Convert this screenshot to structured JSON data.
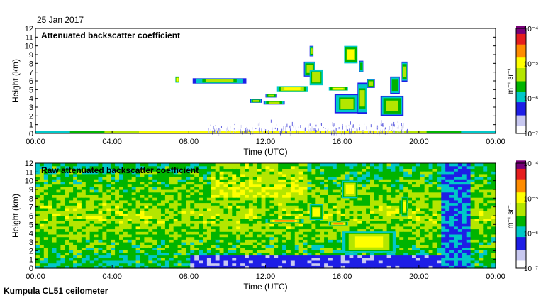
{
  "date_label": "25 Jan 2017",
  "footer": "Kumpula CL51 ceilometer",
  "colors": {
    "background": "#ffffff",
    "axis": "#000000",
    "low_noise": "#3b3bd8",
    "colormap": [
      "#ffffff",
      "#c8c8f0",
      "#1e1ee6",
      "#00c8c8",
      "#00b400",
      "#b4e600",
      "#ffff00",
      "#ff8c00",
      "#e61e1e",
      "#780078"
    ]
  },
  "chart_data": [
    {
      "type": "heatmap",
      "title": "Attenuated backscatter coefficient",
      "xlabel": "Time (UTC)",
      "ylabel": "Height (km)",
      "x_ticks": [
        "00:00",
        "04:00",
        "08:00",
        "12:00",
        "16:00",
        "20:00",
        "00:00"
      ],
      "y_ticks": [
        "0",
        "1",
        "2",
        "3",
        "4",
        "5",
        "6",
        "7",
        "8",
        "9",
        "10",
        "11",
        "12"
      ],
      "xlim": [
        0,
        24
      ],
      "ylim": [
        0,
        12
      ],
      "colorbar": {
        "label": "m⁻¹ sr⁻¹",
        "ticks": [
          "10⁻⁴",
          "10⁻⁵",
          "10⁻⁶",
          "10⁻⁷"
        ],
        "log_range": [
          -7,
          -4
        ]
      },
      "features": [
        {
          "kind": "surface_layer",
          "t0": 0,
          "t1": 24,
          "h0": 0,
          "h1": 0.3,
          "level": 0.8
        },
        {
          "kind": "noise",
          "t0": 9,
          "t1": 19.5,
          "h0": 0.2,
          "h1": 1.6,
          "level": 0.2
        },
        {
          "kind": "cloud",
          "t0": 7.3,
          "t1": 7.5,
          "h0": 5.8,
          "h1": 6.5,
          "level": 0.7
        },
        {
          "kind": "cloud",
          "t0": 8.2,
          "t1": 11,
          "h0": 5.7,
          "h1": 6.3,
          "level": 0.55
        },
        {
          "kind": "cloud",
          "t0": 11.2,
          "t1": 11.8,
          "h0": 3.5,
          "h1": 3.9,
          "level": 0.6
        },
        {
          "kind": "cloud",
          "t0": 12,
          "t1": 12.6,
          "h0": 4.1,
          "h1": 4.5,
          "level": 0.6
        },
        {
          "kind": "cloud",
          "t0": 11.9,
          "t1": 13,
          "h0": 3.3,
          "h1": 3.7,
          "level": 0.6
        },
        {
          "kind": "cloud",
          "t0": 12.6,
          "t1": 14.2,
          "h0": 4.8,
          "h1": 5.4,
          "level": 0.75
        },
        {
          "kind": "cloud",
          "t0": 14,
          "t1": 14.6,
          "h0": 6.5,
          "h1": 8.2,
          "level": 0.6
        },
        {
          "kind": "cloud",
          "t0": 14.3,
          "t1": 15,
          "h0": 5.5,
          "h1": 7.3,
          "level": 0.65
        },
        {
          "kind": "cloud",
          "t0": 14.3,
          "t1": 14.5,
          "h0": 8.8,
          "h1": 10,
          "level": 0.6
        },
        {
          "kind": "cloud",
          "t0": 15.3,
          "t1": 16.3,
          "h0": 4.9,
          "h1": 5.3,
          "level": 0.7
        },
        {
          "kind": "cloud",
          "t0": 15.6,
          "t1": 16.9,
          "h0": 2.3,
          "h1": 4.5,
          "level": 0.55
        },
        {
          "kind": "cloud",
          "t0": 16.1,
          "t1": 16.8,
          "h0": 8,
          "h1": 10,
          "level": 0.7
        },
        {
          "kind": "cloud",
          "t0": 16.8,
          "t1": 17.3,
          "h0": 2.2,
          "h1": 5.8,
          "level": 0.55
        },
        {
          "kind": "cloud",
          "t0": 16.9,
          "t1": 17.1,
          "h0": 7,
          "h1": 8.3,
          "level": 0.5
        },
        {
          "kind": "cloud",
          "t0": 17.3,
          "t1": 17.7,
          "h0": 5.2,
          "h1": 6.2,
          "level": 0.6
        },
        {
          "kind": "cloud",
          "t0": 18,
          "t1": 19.2,
          "h0": 2,
          "h1": 4.3,
          "level": 0.6
        },
        {
          "kind": "cloud",
          "t0": 18.5,
          "t1": 19,
          "h0": 4.5,
          "h1": 6.5,
          "level": 0.5
        },
        {
          "kind": "cloud",
          "t0": 19.1,
          "t1": 19.4,
          "h0": 5.9,
          "h1": 8.2,
          "level": 0.6
        }
      ]
    },
    {
      "type": "heatmap",
      "title": "Raw attenuated backscatter coefficient",
      "xlabel": "Time (UTC)",
      "ylabel": "Height (km)",
      "x_ticks": [
        "00:00",
        "04:00",
        "08:00",
        "12:00",
        "16:00",
        "20:00",
        "00:00"
      ],
      "y_ticks": [
        "0",
        "1",
        "2",
        "3",
        "4",
        "5",
        "6",
        "7",
        "8",
        "9",
        "10",
        "11",
        "12"
      ],
      "xlim": [
        0,
        24
      ],
      "ylim": [
        0,
        12
      ],
      "colorbar": {
        "label": "m⁻¹ sr⁻¹",
        "ticks": [
          "10⁻⁴",
          "10⁻⁵",
          "10⁻⁶",
          "10⁻⁷"
        ],
        "log_range": [
          -7,
          -4
        ]
      },
      "features": [
        {
          "kind": "surface_layer",
          "t0": 0,
          "t1": 24,
          "h0": 0,
          "h1": 0.3,
          "level": 0.8
        },
        {
          "kind": "noise_field",
          "t0": 0,
          "t1": 24,
          "h0": 0,
          "h1": 12,
          "level": 0.45
        },
        {
          "kind": "cloud",
          "t0": 12,
          "t1": 14,
          "h0": 5.2,
          "h1": 5.6,
          "level": 0.85
        },
        {
          "kind": "cloud",
          "t0": 14.3,
          "t1": 15,
          "h0": 5.5,
          "h1": 7.3,
          "level": 0.7
        },
        {
          "kind": "cloud",
          "t0": 15.3,
          "t1": 16.3,
          "h0": 4.9,
          "h1": 5.3,
          "level": 0.8
        },
        {
          "kind": "cloud",
          "t0": 16,
          "t1": 16.8,
          "h0": 8,
          "h1": 10,
          "level": 0.75
        },
        {
          "kind": "cloud",
          "t0": 16,
          "t1": 18.8,
          "h0": 1.8,
          "h1": 4.2,
          "level": 0.75
        },
        {
          "kind": "cloud",
          "t0": 19.1,
          "t1": 19.4,
          "h0": 5.9,
          "h1": 8.2,
          "level": 0.7
        }
      ]
    }
  ]
}
